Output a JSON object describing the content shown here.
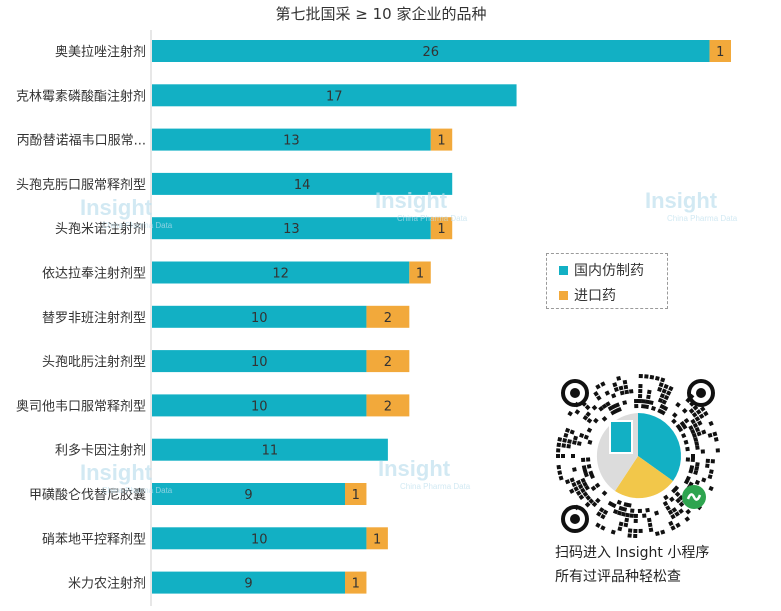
{
  "chart_data": {
    "type": "bar",
    "orientation": "horizontal",
    "stacked": true,
    "title": "第七批国采 ≥ 10 家企业的品种",
    "categories": [
      "奥美拉唑注射剂",
      "克林霉素磷酸酯注射剂",
      "丙酚替诺福韦口服常...",
      "头孢克肟口服常释剂型",
      "头孢米诺注射剂",
      "依达拉奉注射剂型",
      "替罗非班注射剂型",
      "头孢吡肟注射剂型",
      "奥司他韦口服常释剂型",
      "利多卡因注射剂",
      "甲磺酸仑伐替尼胶囊",
      "硝苯地平控释剂型",
      "米力农注射剂"
    ],
    "series": [
      {
        "name": "国内仿制药",
        "color": "#12b0c4",
        "values": [
          26,
          17,
          13,
          14,
          13,
          12,
          10,
          10,
          10,
          11,
          9,
          10,
          9
        ]
      },
      {
        "name": "进口药",
        "color": "#f2a93b",
        "values": [
          1,
          0,
          1,
          0,
          1,
          1,
          2,
          2,
          2,
          0,
          1,
          1,
          1
        ]
      }
    ],
    "xlim": [
      0,
      27
    ],
    "legend_position": "right",
    "grid": false
  },
  "legend": {
    "items": [
      "国内仿制药",
      "进口药"
    ]
  },
  "promo": {
    "line1": "扫码进入 Insight 小程序",
    "line2": "所有过评品种轻松查"
  },
  "watermark": {
    "brand": "Insight",
    "tagline": "China Pharma Data"
  }
}
